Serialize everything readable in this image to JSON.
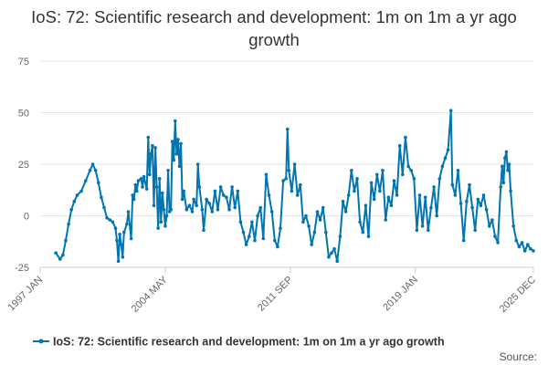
{
  "chart_data": {
    "type": "line",
    "title": "IoS: 72: Scientific research and development: 1m on 1m a yr ago growth",
    "xlabel": "",
    "ylabel": "",
    "ylim": [
      -25,
      75
    ],
    "yticks": [
      75,
      50,
      25,
      0,
      -25
    ],
    "xticks": [
      {
        "label": "1997 JAN",
        "date": "1997-01"
      },
      {
        "label": "2004 MAY",
        "date": "2004-05"
      },
      {
        "label": "2011 SEP",
        "date": "2011-09"
      },
      {
        "label": "2019 JAN",
        "date": "2019-01"
      },
      {
        "label": "2025 DEC",
        "date": "2025-12"
      }
    ],
    "grid": true,
    "legend_position": "bottom",
    "series": [
      {
        "name": "IoS: 72: Scientific research and development: 1m on 1m a yr ago growth",
        "color": "#0075b0",
        "points": [
          [
            "1997-12",
            -18
          ],
          [
            "1998-03",
            -21
          ],
          [
            "1998-05",
            -19
          ],
          [
            "1998-07",
            -12
          ],
          [
            "1998-09",
            -4
          ],
          [
            "1998-11",
            3
          ],
          [
            "1999-01",
            7
          ],
          [
            "1999-03",
            10
          ],
          [
            "1999-06",
            12
          ],
          [
            "1999-09",
            17
          ],
          [
            "1999-12",
            22
          ],
          [
            "2000-02",
            25
          ],
          [
            "2000-04",
            22
          ],
          [
            "2000-06",
            16
          ],
          [
            "2000-08",
            9
          ],
          [
            "2000-10",
            4
          ],
          [
            "2000-12",
            -1
          ],
          [
            "2001-02",
            -2
          ],
          [
            "2001-04",
            -3
          ],
          [
            "2001-06",
            -6
          ],
          [
            "2001-07",
            -12
          ],
          [
            "2001-08",
            -22
          ],
          [
            "2001-09",
            -9
          ],
          [
            "2001-10",
            -14
          ],
          [
            "2001-11",
            -20
          ],
          [
            "2001-12",
            -8
          ],
          [
            "2002-02",
            -4
          ],
          [
            "2002-03",
            2
          ],
          [
            "2002-05",
            -11
          ],
          [
            "2002-06",
            10
          ],
          [
            "2002-07",
            8
          ],
          [
            "2002-08",
            15
          ],
          [
            "2002-09",
            12
          ],
          [
            "2002-10",
            17
          ],
          [
            "2002-12",
            18
          ],
          [
            "2003-01",
            14
          ],
          [
            "2003-02",
            19
          ],
          [
            "2003-04",
            13
          ],
          [
            "2003-05",
            38
          ],
          [
            "2003-06",
            20
          ],
          [
            "2003-07",
            30
          ],
          [
            "2003-08",
            34
          ],
          [
            "2003-09",
            5
          ],
          [
            "2003-10",
            33
          ],
          [
            "2003-11",
            14
          ],
          [
            "2003-12",
            -6
          ],
          [
            "2004-01",
            18
          ],
          [
            "2004-02",
            -3
          ],
          [
            "2004-03",
            11
          ],
          [
            "2004-04",
            3
          ],
          [
            "2004-05",
            -5
          ],
          [
            "2004-06",
            0
          ],
          [
            "2004-07",
            22
          ],
          [
            "2004-08",
            2
          ],
          [
            "2004-09",
            3
          ],
          [
            "2004-10",
            36
          ],
          [
            "2004-11",
            27
          ],
          [
            "2004-12",
            46
          ],
          [
            "2005-01",
            30
          ],
          [
            "2005-02",
            37
          ],
          [
            "2005-03",
            24
          ],
          [
            "2005-04",
            35
          ],
          [
            "2005-05",
            8
          ],
          [
            "2005-06",
            12
          ],
          [
            "2005-08",
            3
          ],
          [
            "2005-10",
            5
          ],
          [
            "2005-12",
            2
          ],
          [
            "2006-01",
            8
          ],
          [
            "2006-03",
            5
          ],
          [
            "2006-04",
            25
          ],
          [
            "2006-05",
            14
          ],
          [
            "2006-07",
            3
          ],
          [
            "2006-08",
            -7
          ],
          [
            "2006-10",
            8
          ],
          [
            "2006-12",
            6
          ],
          [
            "2007-02",
            2
          ],
          [
            "2007-04",
            12
          ],
          [
            "2007-06",
            3
          ],
          [
            "2007-08",
            14
          ],
          [
            "2007-10",
            10
          ],
          [
            "2007-12",
            9
          ],
          [
            "2008-02",
            3
          ],
          [
            "2008-04",
            14
          ],
          [
            "2008-06",
            4
          ],
          [
            "2008-08",
            12
          ],
          [
            "2008-10",
            -3
          ],
          [
            "2008-12",
            -8
          ],
          [
            "2009-02",
            -14
          ],
          [
            "2009-04",
            -10
          ],
          [
            "2009-06",
            -3
          ],
          [
            "2009-08",
            -12
          ],
          [
            "2009-10",
            0
          ],
          [
            "2009-12",
            4
          ],
          [
            "2010-02",
            -11
          ],
          [
            "2010-04",
            20
          ],
          [
            "2010-06",
            10
          ],
          [
            "2010-08",
            2
          ],
          [
            "2010-10",
            -12
          ],
          [
            "2010-12",
            -15
          ],
          [
            "2011-02",
            -6
          ],
          [
            "2011-04",
            17
          ],
          [
            "2011-06",
            18
          ],
          [
            "2011-07",
            42
          ],
          [
            "2011-08",
            22
          ],
          [
            "2011-10",
            12
          ],
          [
            "2011-12",
            25
          ],
          [
            "2012-02",
            10
          ],
          [
            "2012-04",
            15
          ],
          [
            "2012-06",
            -3
          ],
          [
            "2012-08",
            0
          ],
          [
            "2012-10",
            -5
          ],
          [
            "2012-12",
            -14
          ],
          [
            "2013-02",
            -8
          ],
          [
            "2013-04",
            2
          ],
          [
            "2013-06",
            -2
          ],
          [
            "2013-08",
            4
          ],
          [
            "2013-10",
            -8
          ],
          [
            "2013-12",
            -20
          ],
          [
            "2014-02",
            -18
          ],
          [
            "2014-04",
            -16
          ],
          [
            "2014-06",
            -22
          ],
          [
            "2014-08",
            -10
          ],
          [
            "2014-10",
            7
          ],
          [
            "2014-12",
            2
          ],
          [
            "2015-02",
            10
          ],
          [
            "2015-04",
            22
          ],
          [
            "2015-06",
            12
          ],
          [
            "2015-08",
            18
          ],
          [
            "2015-10",
            -3
          ],
          [
            "2015-12",
            -8
          ],
          [
            "2016-02",
            5
          ],
          [
            "2016-04",
            -10
          ],
          [
            "2016-06",
            16
          ],
          [
            "2016-08",
            8
          ],
          [
            "2016-10",
            20
          ],
          [
            "2016-12",
            12
          ],
          [
            "2017-02",
            22
          ],
          [
            "2017-04",
            -2
          ],
          [
            "2017-06",
            9
          ],
          [
            "2017-08",
            5
          ],
          [
            "2017-10",
            17
          ],
          [
            "2017-12",
            10
          ],
          [
            "2018-02",
            34
          ],
          [
            "2018-04",
            20
          ],
          [
            "2018-06",
            38
          ],
          [
            "2018-08",
            24
          ],
          [
            "2018-10",
            22
          ],
          [
            "2018-12",
            18
          ],
          [
            "2019-02",
            -7
          ],
          [
            "2019-04",
            10
          ],
          [
            "2019-06",
            -5
          ],
          [
            "2019-08",
            9
          ],
          [
            "2019-10",
            -7
          ],
          [
            "2019-12",
            4
          ],
          [
            "2020-02",
            14
          ],
          [
            "2020-04",
            0
          ],
          [
            "2020-06",
            18
          ],
          [
            "2020-08",
            24
          ],
          [
            "2020-10",
            28
          ],
          [
            "2020-12",
            32
          ],
          [
            "2021-02",
            51
          ],
          [
            "2021-03",
            15
          ],
          [
            "2021-05",
            10
          ],
          [
            "2021-07",
            22
          ],
          [
            "2021-09",
            6
          ],
          [
            "2021-11",
            -12
          ],
          [
            "2022-01",
            7
          ],
          [
            "2022-03",
            15
          ],
          [
            "2022-05",
            4
          ],
          [
            "2022-07",
            -7
          ],
          [
            "2022-09",
            8
          ],
          [
            "2022-11",
            5
          ],
          [
            "2023-01",
            10
          ],
          [
            "2023-03",
            3
          ],
          [
            "2023-05",
            -5
          ],
          [
            "2023-07",
            -2
          ],
          [
            "2023-09",
            -10
          ],
          [
            "2023-11",
            -13
          ],
          [
            "2024-01",
            14
          ],
          [
            "2024-02",
            24
          ],
          [
            "2024-03",
            16
          ],
          [
            "2024-04",
            28
          ],
          [
            "2024-05",
            31
          ],
          [
            "2024-06",
            22
          ],
          [
            "2024-07",
            25
          ],
          [
            "2024-08",
            12
          ],
          [
            "2024-10",
            -5
          ],
          [
            "2024-12",
            -12
          ],
          [
            "2025-02",
            -15
          ],
          [
            "2025-04",
            -13
          ],
          [
            "2025-06",
            -17
          ],
          [
            "2025-08",
            -14
          ],
          [
            "2025-10",
            -16
          ],
          [
            "2025-12",
            -17
          ]
        ]
      }
    ]
  },
  "legend": {
    "label": "IoS: 72: Scientific research and development: 1m on 1m a yr ago growth"
  },
  "footer": {
    "source": "Source:"
  }
}
